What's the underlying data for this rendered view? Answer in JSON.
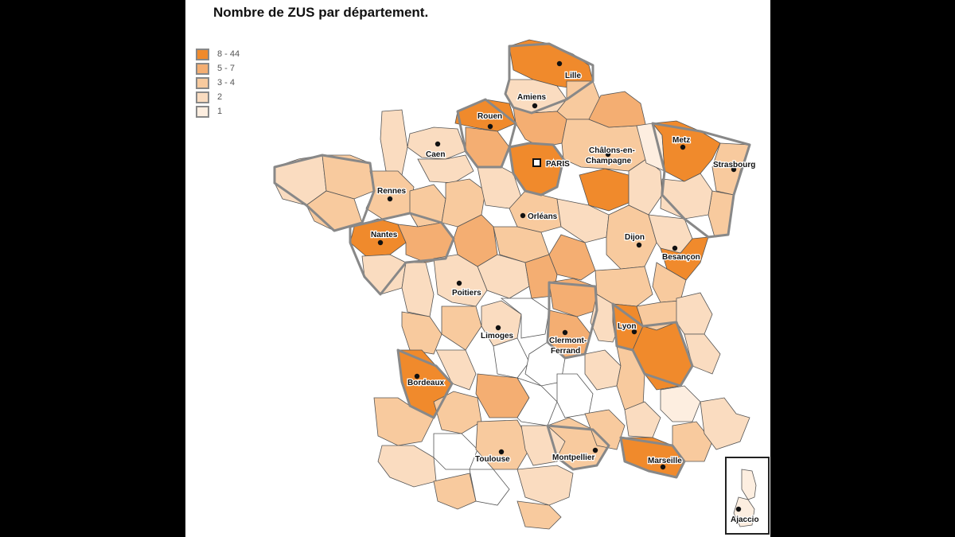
{
  "title": "Nombre de ZUS par département.",
  "legend": {
    "items": [
      {
        "label": "8 - 44",
        "color": "#f08a2c"
      },
      {
        "label": "5 - 7",
        "color": "#f4ae72"
      },
      {
        "label": "3 - 4",
        "color": "#f8ca9e"
      },
      {
        "label": "2",
        "color": "#fadcc0"
      },
      {
        "label": "1",
        "color": "#fdeee0"
      }
    ]
  },
  "colors": {
    "none": "#ffffff",
    "border": "#555555",
    "region_border": "#888888"
  },
  "cities": [
    {
      "name": "Lille"
    },
    {
      "name": "Amiens"
    },
    {
      "name": "Rouen"
    },
    {
      "name": "Caen"
    },
    {
      "name": "Châlons-en-"
    },
    {
      "name": "Champagne"
    },
    {
      "name": "Metz"
    },
    {
      "name": "PARIS"
    },
    {
      "name": "Strasbourg"
    },
    {
      "name": "Rennes"
    },
    {
      "name": "Orléans"
    },
    {
      "name": "Nantes"
    },
    {
      "name": "Dijon"
    },
    {
      "name": "Besançon"
    },
    {
      "name": "Poitiers"
    },
    {
      "name": "Limoges"
    },
    {
      "name": "Clermont-"
    },
    {
      "name": "Ferrand"
    },
    {
      "name": "Lyon"
    },
    {
      "name": "Bordeaux"
    },
    {
      "name": "Toulouse"
    },
    {
      "name": "Montpellier"
    },
    {
      "name": "Marseille"
    },
    {
      "name": "Ajaccio"
    }
  ]
}
